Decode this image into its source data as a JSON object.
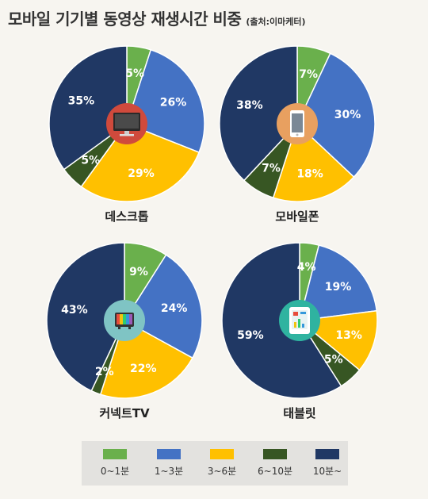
{
  "title": "모바일 기기별 동영상 재생시간 비중",
  "source": "(출처:이마케터)",
  "colors": {
    "0~1분": "#6ab04c",
    "1~3분": "#4472c4",
    "3~6분": "#ffc000",
    "6~10분": "#375623",
    "10분~": "#203864"
  },
  "legend": [
    "0~1분",
    "1~3분",
    "3~6분",
    "6~10분",
    "10분~"
  ],
  "chart_data": [
    {
      "type": "pie",
      "title": "데스크톱",
      "icon": "desktop-monitor-icon",
      "icon_color": "#d04a3c",
      "categories": [
        "0~1분",
        "1~3분",
        "3~6분",
        "6~10분",
        "10분~"
      ],
      "values": [
        5,
        26,
        29,
        5,
        35
      ],
      "labels": [
        "5%",
        "26%",
        "29%",
        "5%",
        "35%"
      ]
    },
    {
      "type": "pie",
      "title": "모바일폰",
      "icon": "smartphone-icon",
      "icon_color": "#e8a060",
      "categories": [
        "0~1분",
        "1~3분",
        "3~6분",
        "6~10분",
        "10분~"
      ],
      "values": [
        7,
        30,
        18,
        7,
        38
      ],
      "labels": [
        "7%",
        "30%",
        "18%",
        "7%",
        "38%"
      ]
    },
    {
      "type": "pie",
      "title": "커넥트TV",
      "icon": "tv-icon",
      "icon_color": "#7fc4c4",
      "categories": [
        "0~1분",
        "1~3분",
        "3~6분",
        "6~10분",
        "10분~"
      ],
      "values": [
        9,
        24,
        22,
        2,
        43
      ],
      "labels": [
        "9%",
        "24%",
        "22%",
        "2%",
        "43%"
      ]
    },
    {
      "type": "pie",
      "title": "태블릿",
      "icon": "tablet-icon",
      "icon_color": "#2fb3a0",
      "categories": [
        "0~1분",
        "1~3분",
        "3~6분",
        "6~10분",
        "10분~"
      ],
      "values": [
        4,
        19,
        13,
        5,
        59
      ],
      "labels": [
        "4%",
        "19%",
        "13%",
        "5%",
        "59%"
      ]
    }
  ]
}
